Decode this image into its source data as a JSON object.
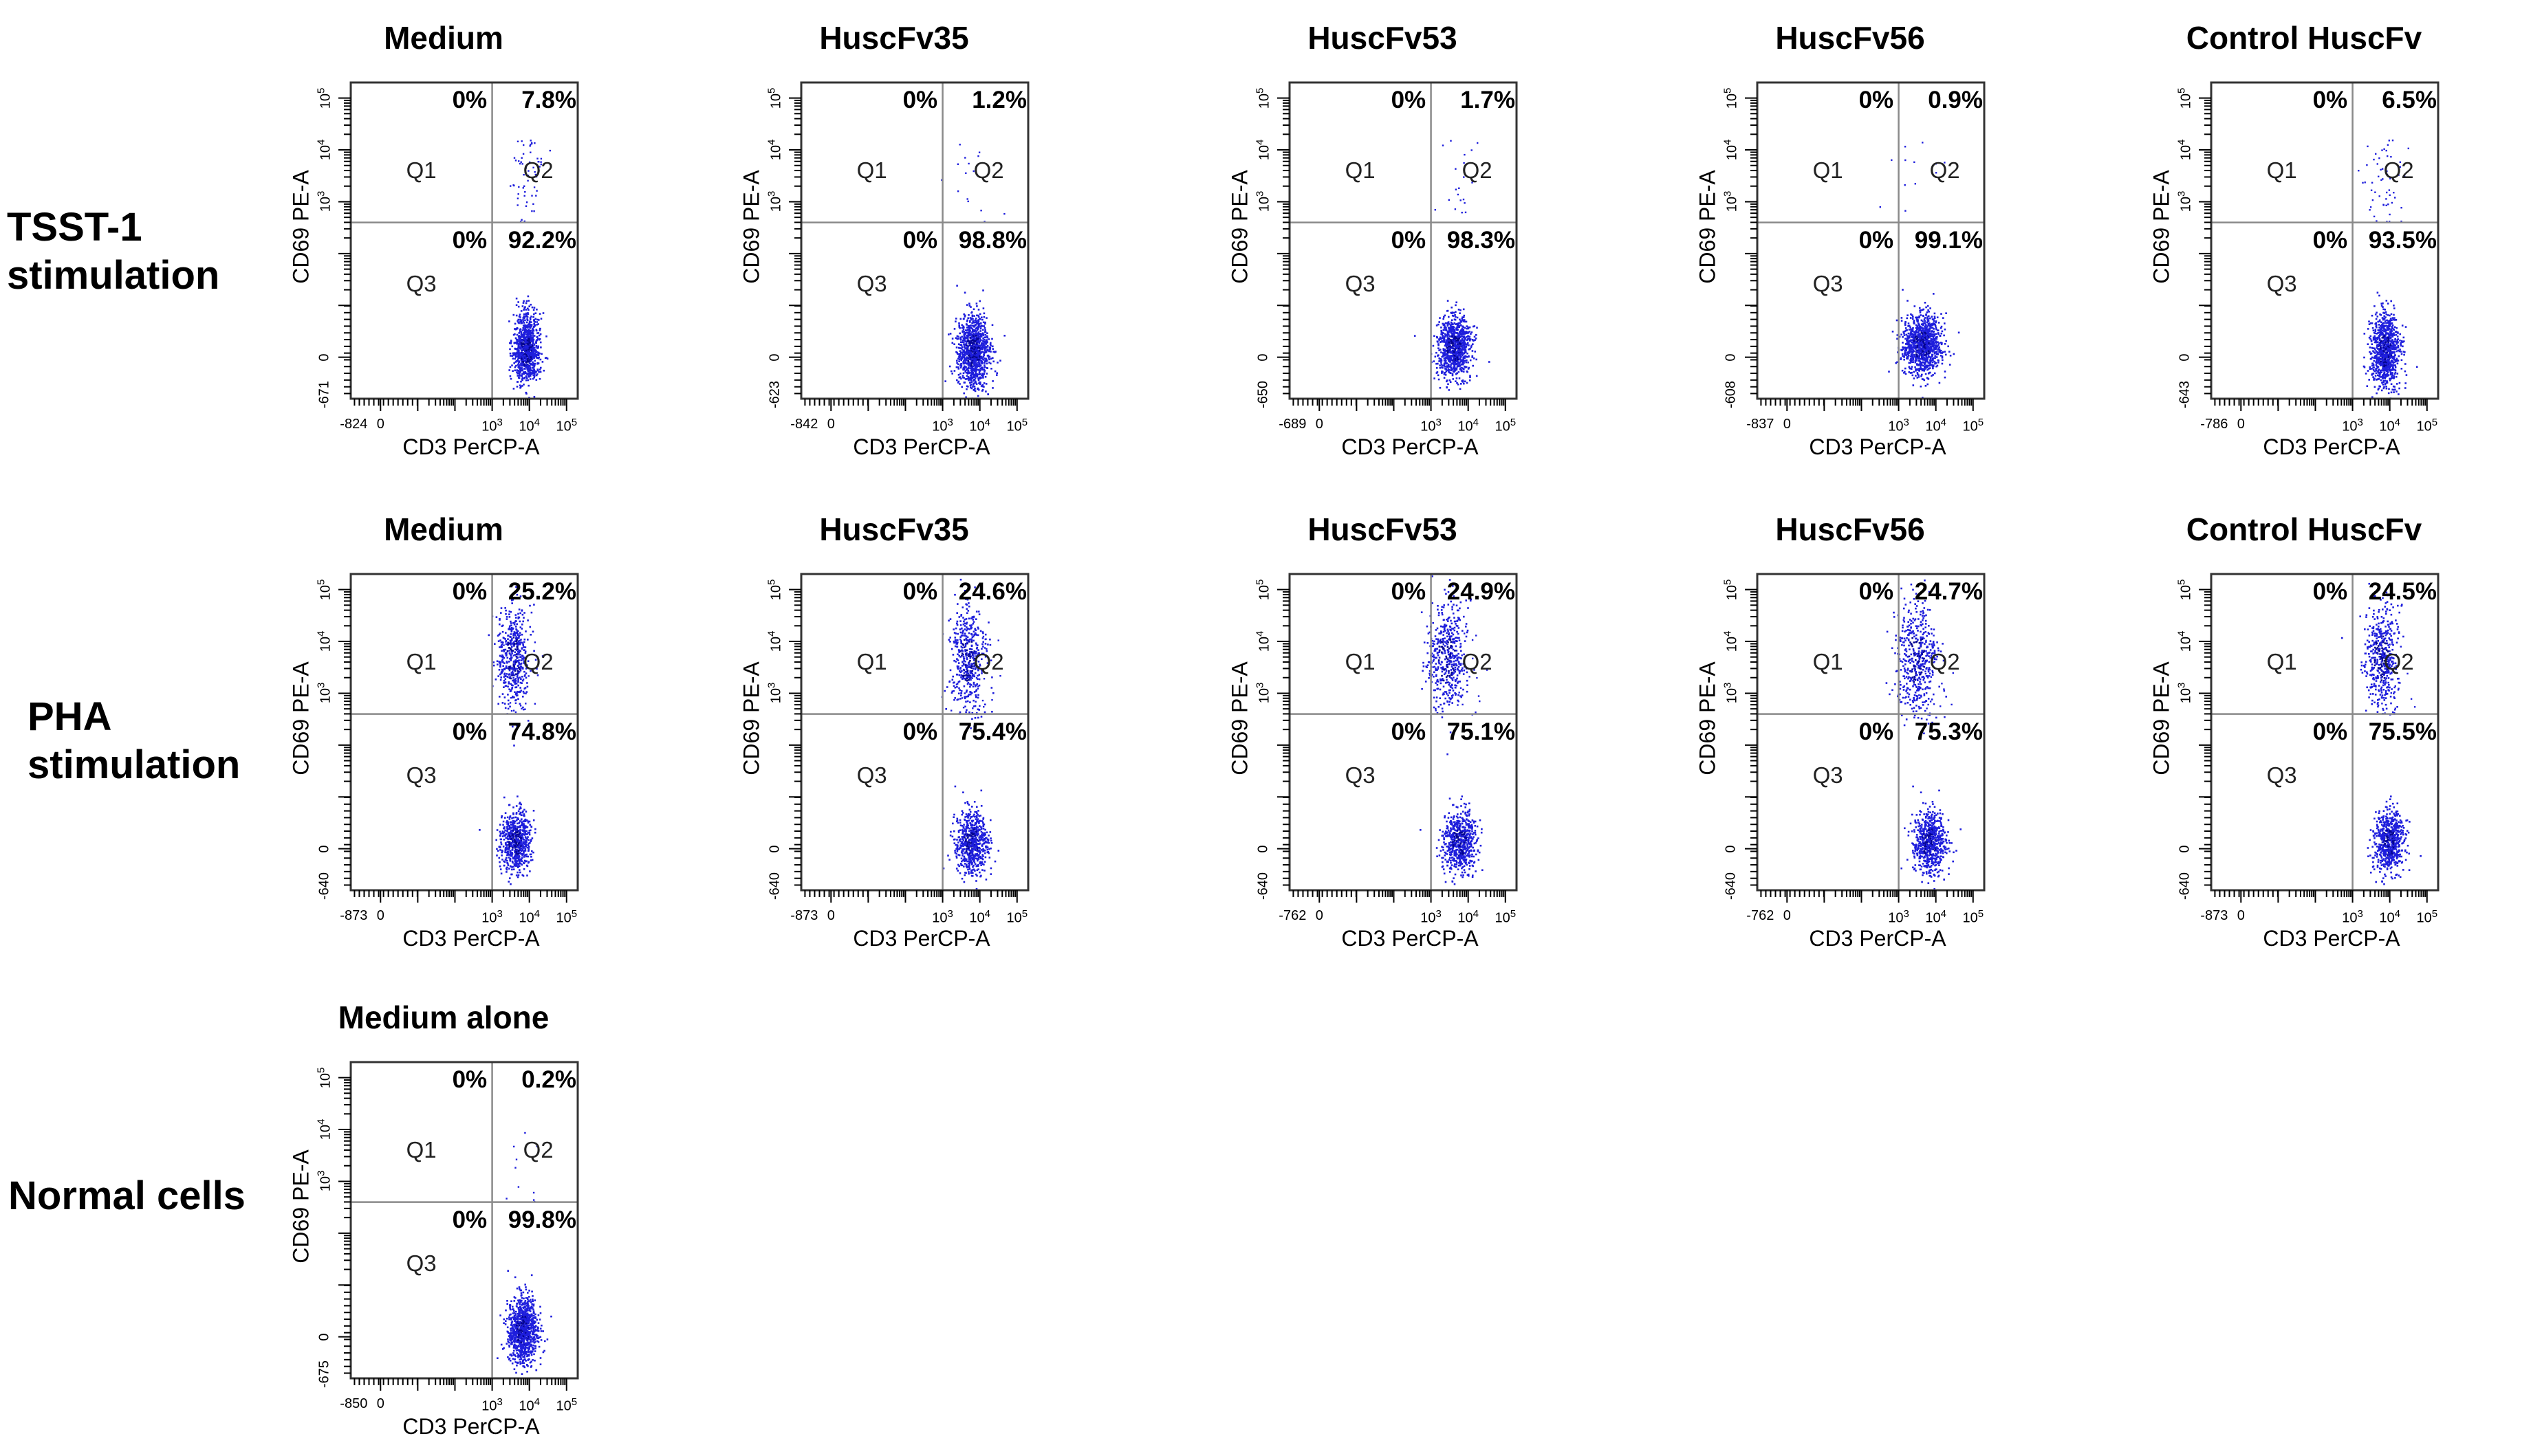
{
  "row_labels": {
    "tsst": [
      "TSST-1",
      "stimulation"
    ],
    "pha": [
      "PHA",
      "stimulation"
    ],
    "normal": [
      "Normal cells"
    ]
  },
  "colors": {
    "dots": "#1e1edc",
    "dots_dark": "#050590",
    "gate": "#8a8a8a",
    "frame": "#333333"
  },
  "chart_data": [
    {
      "type": "scatter",
      "row": "TSST-1 stimulation",
      "title": "Medium",
      "xlabel": "CD3 PerCP-A",
      "ylabel": "CD69 PE-A",
      "xmin_label": "-824",
      "ymin_label": "-671",
      "quadrants": {
        "Q1": "0%",
        "Q2": "7.8%",
        "Q3": "0%",
        "Q4": "92.2%"
      },
      "clusters": [
        {
          "cx": 3.9,
          "cy": 0.15,
          "sx": 0.18,
          "sy": 0.35,
          "n": 900
        }
      ],
      "sparse": {
        "n": 60
      }
    },
    {
      "type": "scatter",
      "row": "TSST-1 stimulation",
      "title": "HuscFv35",
      "xlabel": "CD3 PerCP-A",
      "ylabel": "CD69 PE-A",
      "xmin_label": "-842",
      "ymin_label": "-623",
      "quadrants": {
        "Q1": "0%",
        "Q2": "1.2%",
        "Q3": "0%",
        "Q4": "98.8%"
      },
      "clusters": [
        {
          "cx": 3.8,
          "cy": 0.15,
          "sx": 0.22,
          "sy": 0.35,
          "n": 1000
        }
      ],
      "sparse": {
        "n": 15
      }
    },
    {
      "type": "scatter",
      "row": "TSST-1 stimulation",
      "title": "HuscFv53",
      "xlabel": "CD3 PerCP-A",
      "ylabel": "CD69 PE-A",
      "xmin_label": "-689",
      "ymin_label": "-650",
      "quadrants": {
        "Q1": "0%",
        "Q2": "1.7%",
        "Q3": "0%",
        "Q4": "98.3%"
      },
      "clusters": [
        {
          "cx": 3.6,
          "cy": 0.2,
          "sx": 0.22,
          "sy": 0.3,
          "n": 900
        }
      ],
      "sparse": {
        "n": 20
      }
    },
    {
      "type": "scatter",
      "row": "TSST-1 stimulation",
      "title": "HuscFv56",
      "xlabel": "CD3 PerCP-A",
      "ylabel": "CD69 PE-A",
      "xmin_label": "-837",
      "ymin_label": "-608",
      "quadrants": {
        "Q1": "0%",
        "Q2": "0.9%",
        "Q3": "0%",
        "Q4": "99.1%"
      },
      "clusters": [
        {
          "cx": 3.6,
          "cy": 0.25,
          "sx": 0.26,
          "sy": 0.3,
          "n": 1000
        }
      ],
      "sparse": {
        "n": 12
      }
    },
    {
      "type": "scatter",
      "row": "TSST-1 stimulation",
      "title": "Control HuscFv",
      "xlabel": "CD3 PerCP-A",
      "ylabel": "CD69 PE-A",
      "xmin_label": "-786",
      "ymin_label": "-643",
      "quadrants": {
        "Q1": "0%",
        "Q2": "6.5%",
        "Q3": "0%",
        "Q4": "93.5%"
      },
      "clusters": [
        {
          "cx": 3.85,
          "cy": 0.15,
          "sx": 0.2,
          "sy": 0.35,
          "n": 900
        }
      ],
      "sparse": {
        "n": 55
      }
    },
    {
      "type": "scatter",
      "row": "PHA stimulation",
      "title": "Medium",
      "xlabel": "CD3 PerCP-A",
      "ylabel": "CD69 PE-A",
      "xmin_label": "-873",
      "ymin_label": "-640",
      "quadrants": {
        "Q1": "0%",
        "Q2": "25.2%",
        "Q3": "0%",
        "Q4": "74.8%"
      },
      "clusters": [
        {
          "cx": 3.6,
          "cy": 0.15,
          "sx": 0.2,
          "sy": 0.3,
          "n": 650
        },
        {
          "cx": 3.55,
          "cy": 3.7,
          "sx": 0.22,
          "sy": 0.5,
          "n": 450
        }
      ],
      "sparse": {
        "n": 40
      }
    },
    {
      "type": "scatter",
      "row": "PHA stimulation",
      "title": "HuscFv35",
      "xlabel": "CD3 PerCP-A",
      "ylabel": "CD69 PE-A",
      "xmin_label": "-873",
      "ymin_label": "-640",
      "quadrants": {
        "Q1": "0%",
        "Q2": "24.6%",
        "Q3": "0%",
        "Q4": "75.4%"
      },
      "clusters": [
        {
          "cx": 3.75,
          "cy": 0.15,
          "sx": 0.22,
          "sy": 0.3,
          "n": 650
        },
        {
          "cx": 3.65,
          "cy": 3.7,
          "sx": 0.24,
          "sy": 0.5,
          "n": 450
        }
      ],
      "sparse": {
        "n": 40
      }
    },
    {
      "type": "scatter",
      "row": "PHA stimulation",
      "title": "HuscFv53",
      "xlabel": "CD3 PerCP-A",
      "ylabel": "CD69 PE-A",
      "xmin_label": "-762",
      "ymin_label": "-640",
      "quadrants": {
        "Q1": "0%",
        "Q2": "24.9%",
        "Q3": "0%",
        "Q4": "75.1%"
      },
      "clusters": [
        {
          "cx": 3.75,
          "cy": 0.15,
          "sx": 0.22,
          "sy": 0.3,
          "n": 650
        },
        {
          "cx": 3.4,
          "cy": 3.7,
          "sx": 0.26,
          "sy": 0.55,
          "n": 450
        }
      ],
      "sparse": {
        "n": 40
      }
    },
    {
      "type": "scatter",
      "row": "PHA stimulation",
      "title": "HuscFv56",
      "xlabel": "CD3 PerCP-A",
      "ylabel": "CD69 PE-A",
      "xmin_label": "-762",
      "ymin_label": "-640",
      "quadrants": {
        "Q1": "0%",
        "Q2": "24.7%",
        "Q3": "0%",
        "Q4": "75.3%"
      },
      "clusters": [
        {
          "cx": 3.8,
          "cy": 0.15,
          "sx": 0.22,
          "sy": 0.3,
          "n": 650
        },
        {
          "cx": 3.45,
          "cy": 3.7,
          "sx": 0.28,
          "sy": 0.55,
          "n": 450
        }
      ],
      "sparse": {
        "n": 40
      }
    },
    {
      "type": "scatter",
      "row": "PHA stimulation",
      "title": "Control HuscFv",
      "xlabel": "CD3 PerCP-A",
      "ylabel": "CD69 PE-A",
      "xmin_label": "-873",
      "ymin_label": "-640",
      "quadrants": {
        "Q1": "0%",
        "Q2": "24.5%",
        "Q3": "0%",
        "Q4": "75.5%"
      },
      "clusters": [
        {
          "cx": 3.95,
          "cy": 0.15,
          "sx": 0.2,
          "sy": 0.3,
          "n": 650
        },
        {
          "cx": 3.75,
          "cy": 3.7,
          "sx": 0.22,
          "sy": 0.5,
          "n": 450
        }
      ],
      "sparse": {
        "n": 40
      }
    },
    {
      "type": "scatter",
      "row": "Normal cells",
      "title": "Medium alone",
      "xlabel": "CD3 PerCP-A",
      "ylabel": "CD69 PE-A",
      "xmin_label": "-850",
      "ymin_label": "-675",
      "quadrants": {
        "Q1": "0%",
        "Q2": "0.2%",
        "Q3": "0%",
        "Q4": "99.8%"
      },
      "clusters": [
        {
          "cx": 3.8,
          "cy": 0.15,
          "sx": 0.2,
          "sy": 0.32,
          "n": 950
        }
      ],
      "sparse": {
        "n": 10
      }
    }
  ]
}
